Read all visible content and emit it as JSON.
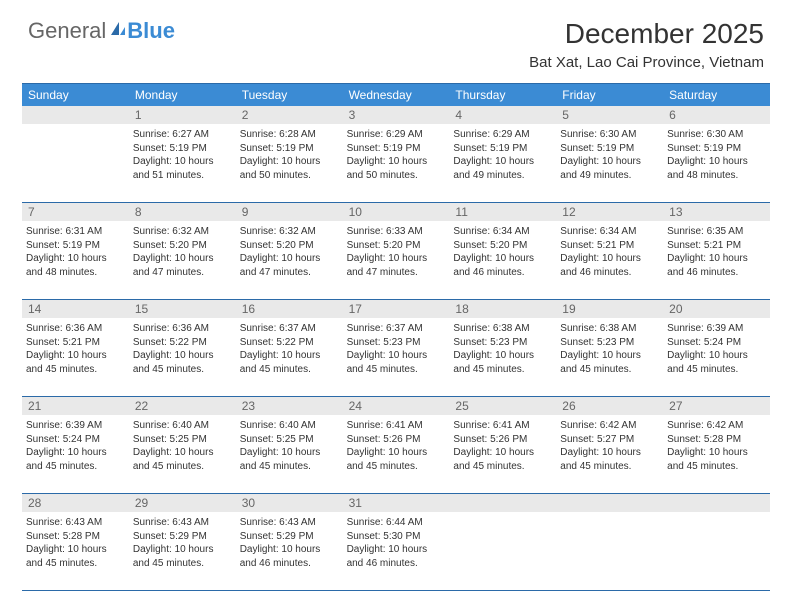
{
  "logo": {
    "part1": "General",
    "part2": "Blue"
  },
  "title": "December 2025",
  "subtitle": "Bat Xat, Lao Cai Province, Vietnam",
  "colors": {
    "header_bar": "#3b8bd4",
    "header_text": "#ffffff",
    "daynum_bg": "#e9e9e9",
    "border": "#2b6aa8",
    "text": "#333333",
    "daynum_text": "#666666",
    "logo_gray": "#666666",
    "logo_blue": "#3b8bd4",
    "background": "#ffffff"
  },
  "weekdays": [
    "Sunday",
    "Monday",
    "Tuesday",
    "Wednesday",
    "Thursday",
    "Friday",
    "Saturday"
  ],
  "weeks": [
    [
      {
        "num": "",
        "sunrise": "",
        "sunset": "",
        "daylight": ""
      },
      {
        "num": "1",
        "sunrise": "Sunrise: 6:27 AM",
        "sunset": "Sunset: 5:19 PM",
        "daylight": "Daylight: 10 hours and 51 minutes."
      },
      {
        "num": "2",
        "sunrise": "Sunrise: 6:28 AM",
        "sunset": "Sunset: 5:19 PM",
        "daylight": "Daylight: 10 hours and 50 minutes."
      },
      {
        "num": "3",
        "sunrise": "Sunrise: 6:29 AM",
        "sunset": "Sunset: 5:19 PM",
        "daylight": "Daylight: 10 hours and 50 minutes."
      },
      {
        "num": "4",
        "sunrise": "Sunrise: 6:29 AM",
        "sunset": "Sunset: 5:19 PM",
        "daylight": "Daylight: 10 hours and 49 minutes."
      },
      {
        "num": "5",
        "sunrise": "Sunrise: 6:30 AM",
        "sunset": "Sunset: 5:19 PM",
        "daylight": "Daylight: 10 hours and 49 minutes."
      },
      {
        "num": "6",
        "sunrise": "Sunrise: 6:30 AM",
        "sunset": "Sunset: 5:19 PM",
        "daylight": "Daylight: 10 hours and 48 minutes."
      }
    ],
    [
      {
        "num": "7",
        "sunrise": "Sunrise: 6:31 AM",
        "sunset": "Sunset: 5:19 PM",
        "daylight": "Daylight: 10 hours and 48 minutes."
      },
      {
        "num": "8",
        "sunrise": "Sunrise: 6:32 AM",
        "sunset": "Sunset: 5:20 PM",
        "daylight": "Daylight: 10 hours and 47 minutes."
      },
      {
        "num": "9",
        "sunrise": "Sunrise: 6:32 AM",
        "sunset": "Sunset: 5:20 PM",
        "daylight": "Daylight: 10 hours and 47 minutes."
      },
      {
        "num": "10",
        "sunrise": "Sunrise: 6:33 AM",
        "sunset": "Sunset: 5:20 PM",
        "daylight": "Daylight: 10 hours and 47 minutes."
      },
      {
        "num": "11",
        "sunrise": "Sunrise: 6:34 AM",
        "sunset": "Sunset: 5:20 PM",
        "daylight": "Daylight: 10 hours and 46 minutes."
      },
      {
        "num": "12",
        "sunrise": "Sunrise: 6:34 AM",
        "sunset": "Sunset: 5:21 PM",
        "daylight": "Daylight: 10 hours and 46 minutes."
      },
      {
        "num": "13",
        "sunrise": "Sunrise: 6:35 AM",
        "sunset": "Sunset: 5:21 PM",
        "daylight": "Daylight: 10 hours and 46 minutes."
      }
    ],
    [
      {
        "num": "14",
        "sunrise": "Sunrise: 6:36 AM",
        "sunset": "Sunset: 5:21 PM",
        "daylight": "Daylight: 10 hours and 45 minutes."
      },
      {
        "num": "15",
        "sunrise": "Sunrise: 6:36 AM",
        "sunset": "Sunset: 5:22 PM",
        "daylight": "Daylight: 10 hours and 45 minutes."
      },
      {
        "num": "16",
        "sunrise": "Sunrise: 6:37 AM",
        "sunset": "Sunset: 5:22 PM",
        "daylight": "Daylight: 10 hours and 45 minutes."
      },
      {
        "num": "17",
        "sunrise": "Sunrise: 6:37 AM",
        "sunset": "Sunset: 5:23 PM",
        "daylight": "Daylight: 10 hours and 45 minutes."
      },
      {
        "num": "18",
        "sunrise": "Sunrise: 6:38 AM",
        "sunset": "Sunset: 5:23 PM",
        "daylight": "Daylight: 10 hours and 45 minutes."
      },
      {
        "num": "19",
        "sunrise": "Sunrise: 6:38 AM",
        "sunset": "Sunset: 5:23 PM",
        "daylight": "Daylight: 10 hours and 45 minutes."
      },
      {
        "num": "20",
        "sunrise": "Sunrise: 6:39 AM",
        "sunset": "Sunset: 5:24 PM",
        "daylight": "Daylight: 10 hours and 45 minutes."
      }
    ],
    [
      {
        "num": "21",
        "sunrise": "Sunrise: 6:39 AM",
        "sunset": "Sunset: 5:24 PM",
        "daylight": "Daylight: 10 hours and 45 minutes."
      },
      {
        "num": "22",
        "sunrise": "Sunrise: 6:40 AM",
        "sunset": "Sunset: 5:25 PM",
        "daylight": "Daylight: 10 hours and 45 minutes."
      },
      {
        "num": "23",
        "sunrise": "Sunrise: 6:40 AM",
        "sunset": "Sunset: 5:25 PM",
        "daylight": "Daylight: 10 hours and 45 minutes."
      },
      {
        "num": "24",
        "sunrise": "Sunrise: 6:41 AM",
        "sunset": "Sunset: 5:26 PM",
        "daylight": "Daylight: 10 hours and 45 minutes."
      },
      {
        "num": "25",
        "sunrise": "Sunrise: 6:41 AM",
        "sunset": "Sunset: 5:26 PM",
        "daylight": "Daylight: 10 hours and 45 minutes."
      },
      {
        "num": "26",
        "sunrise": "Sunrise: 6:42 AM",
        "sunset": "Sunset: 5:27 PM",
        "daylight": "Daylight: 10 hours and 45 minutes."
      },
      {
        "num": "27",
        "sunrise": "Sunrise: 6:42 AM",
        "sunset": "Sunset: 5:28 PM",
        "daylight": "Daylight: 10 hours and 45 minutes."
      }
    ],
    [
      {
        "num": "28",
        "sunrise": "Sunrise: 6:43 AM",
        "sunset": "Sunset: 5:28 PM",
        "daylight": "Daylight: 10 hours and 45 minutes."
      },
      {
        "num": "29",
        "sunrise": "Sunrise: 6:43 AM",
        "sunset": "Sunset: 5:29 PM",
        "daylight": "Daylight: 10 hours and 45 minutes."
      },
      {
        "num": "30",
        "sunrise": "Sunrise: 6:43 AM",
        "sunset": "Sunset: 5:29 PM",
        "daylight": "Daylight: 10 hours and 46 minutes."
      },
      {
        "num": "31",
        "sunrise": "Sunrise: 6:44 AM",
        "sunset": "Sunset: 5:30 PM",
        "daylight": "Daylight: 10 hours and 46 minutes."
      },
      {
        "num": "",
        "sunrise": "",
        "sunset": "",
        "daylight": ""
      },
      {
        "num": "",
        "sunrise": "",
        "sunset": "",
        "daylight": ""
      },
      {
        "num": "",
        "sunrise": "",
        "sunset": "",
        "daylight": ""
      }
    ]
  ]
}
